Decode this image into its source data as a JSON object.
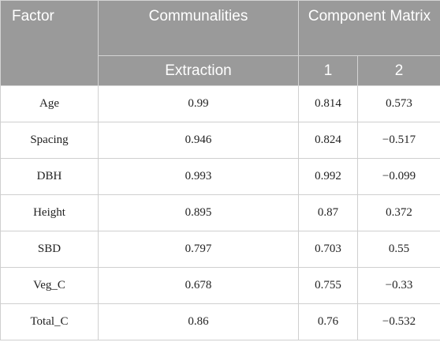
{
  "headers": {
    "factor": "Factor",
    "communalities": "Communalities",
    "component_matrix": "Component Matrix",
    "extraction": "Extraction",
    "comp1": "1",
    "comp2": "2"
  },
  "rows": [
    {
      "factor": "Age",
      "extraction": "0.99",
      "c1": "0.814",
      "c2": "0.573"
    },
    {
      "factor": "Spacing",
      "extraction": "0.946",
      "c1": "0.824",
      "c2": "−0.517"
    },
    {
      "factor": "DBH",
      "extraction": "0.993",
      "c1": "0.992",
      "c2": "−0.099"
    },
    {
      "factor": "Height",
      "extraction": "0.895",
      "c1": "0.87",
      "c2": "0.372"
    },
    {
      "factor": "SBD",
      "extraction": "0.797",
      "c1": "0.703",
      "c2": "0.55"
    },
    {
      "factor": "Veg_C",
      "extraction": "0.678",
      "c1": "0.755",
      "c2": "−0.33"
    },
    {
      "factor": "Total_C",
      "extraction": "0.86",
      "c1": "0.76",
      "c2": "−0.532"
    }
  ]
}
